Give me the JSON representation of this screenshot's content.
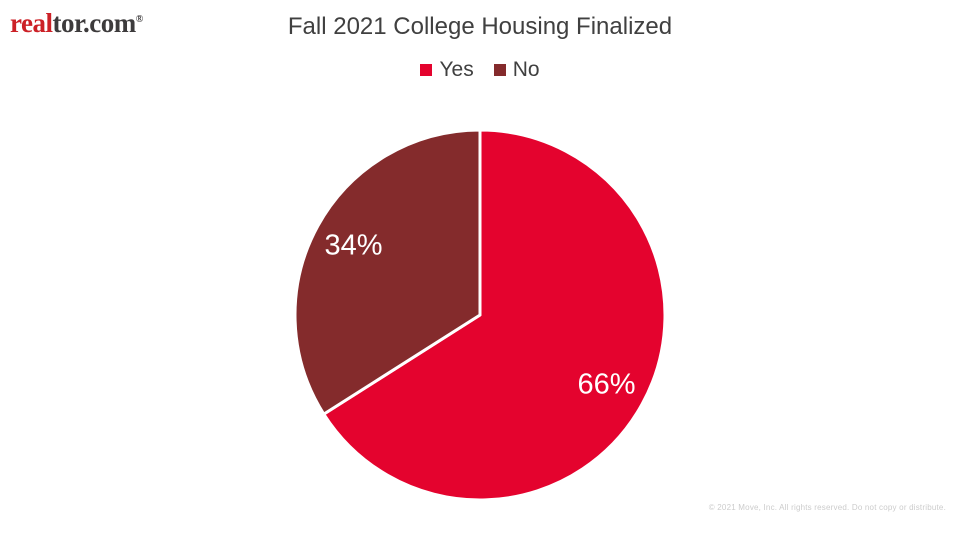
{
  "brand": {
    "logo_real": "real",
    "logo_rest": "tor.com",
    "registered": "®"
  },
  "header": {
    "title": "Fall 2021 College Housing Finalized"
  },
  "legend": {
    "items": [
      {
        "label": "Yes",
        "color": "#e4032e"
      },
      {
        "label": "No",
        "color": "#842b2c"
      }
    ]
  },
  "chart_data": {
    "type": "pie",
    "title": "Fall 2021 College Housing Finalized",
    "categories": [
      "Yes",
      "No"
    ],
    "values": [
      66,
      34
    ],
    "unit": "%",
    "colors": [
      "#e4032e",
      "#842b2c"
    ],
    "data_labels": [
      "66%",
      "34%"
    ],
    "start_angle_deg": 0,
    "direction": "clockwise",
    "legend_position": "top",
    "slice_border_color": "#ffffff",
    "label_color": "#ffffff"
  },
  "footer": {
    "copyright": "© 2021 Move, Inc. All rights reserved. Do not copy or distribute."
  }
}
